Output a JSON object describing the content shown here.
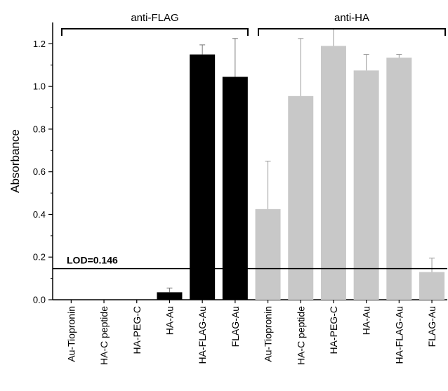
{
  "chart_data": {
    "type": "bar",
    "ylabel": "Absorbance",
    "ylim": [
      0,
      1.3
    ],
    "yticks": [
      "0.0",
      "0.2",
      "0.4",
      "0.6",
      "0.8",
      "1.0",
      "1.2"
    ],
    "categories": [
      "Au-Tiopronin",
      "HA-C peptide",
      "HA-PEG-C",
      "HA-Au",
      "HA-FLAG-Au",
      "FLAG-Au",
      "Au-Tiopronin",
      "HA-C peptide",
      "HA-PEG-C",
      "HA-Au",
      "HA-FLAG-Au",
      "FLAG-Au"
    ],
    "groups": [
      {
        "name": "anti-FLAG",
        "color": "#000000",
        "values": [
          0.0,
          0.0,
          0.0,
          0.035,
          1.15,
          1.045
        ],
        "errors": [
          0.0,
          0.0,
          0.0,
          0.02,
          0.045,
          0.18
        ]
      },
      {
        "name": "anti-HA",
        "color": "#c8c8c8",
        "values": [
          0.425,
          0.955,
          1.19,
          1.075,
          1.135,
          0.13
        ],
        "errors": [
          0.225,
          0.27,
          0.08,
          0.075,
          0.015,
          0.065
        ]
      }
    ],
    "reference_line": {
      "value": 0.146,
      "label": "LOD=0.146"
    },
    "grid": false,
    "legend": "none"
  }
}
